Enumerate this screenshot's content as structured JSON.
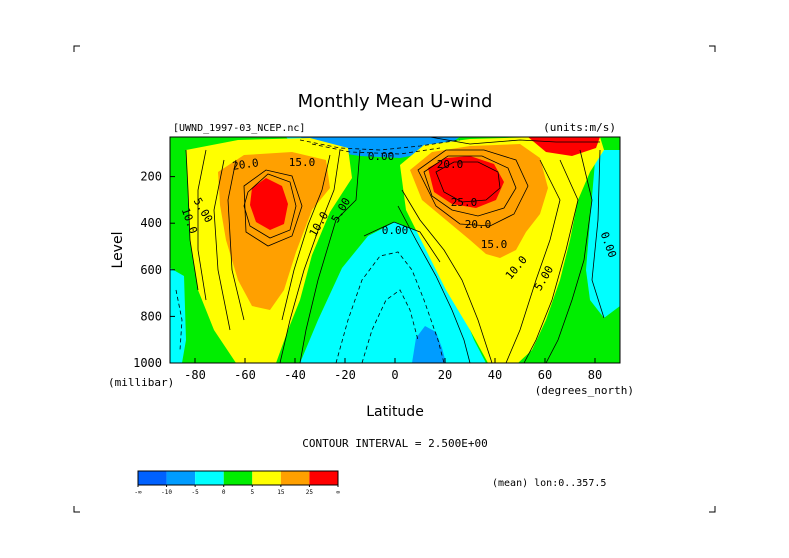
{
  "chart_data": {
    "type": "heatmap",
    "title": "Monthly Mean U-wind",
    "dataset_label": "[UWND_1997-03_NCEP.nc]",
    "units_label": "(units:m/s)",
    "xlabel": "Latitude",
    "xunits": "(degrees_north)",
    "ylabel": "Level",
    "yunits": "(millibar)",
    "xlim": [
      -90,
      90
    ],
    "ylim": [
      1000,
      30
    ],
    "x_ticks": [
      "-80",
      "-60",
      "-40",
      "-20",
      "0",
      "20",
      "40",
      "60",
      "80"
    ],
    "y_ticks": [
      "200",
      "400",
      "600",
      "800",
      "1000"
    ],
    "contour_interval_text": "CONTOUR INTERVAL = 2.500E+00",
    "mean_text": "(mean) lon:0..357.5",
    "contour_labels": [
      "20.0",
      "15.0",
      "10.0",
      "5.00",
      "10.0",
      "5.00",
      "0.00",
      "0.00",
      "20.0",
      "25.0",
      "20.0",
      "15.0",
      "10.0",
      "5.00",
      "0.00"
    ],
    "colorbar": {
      "colors": [
        "#0061ff",
        "#009cff",
        "#00ffff",
        "#00ee00",
        "#ffff00",
        "#ffa000",
        "#ff0000"
      ],
      "ticks": [
        "-∞",
        "-10",
        "-5",
        "0",
        "5",
        "15",
        "25",
        "∞"
      ]
    }
  }
}
